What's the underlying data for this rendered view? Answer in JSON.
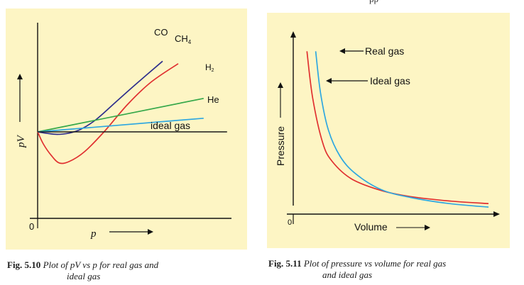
{
  "header_fragment": "pp",
  "chart_data": [
    {
      "type": "line",
      "figure_label": "Fig. 5.10",
      "caption": "Plot of pV vs p for real gas and ideal gas",
      "caption_line1": "Plot of  pV vs p for real gas and",
      "caption_line2": "ideal gas",
      "xlabel": "p",
      "ylabel": "pV",
      "origin_label": "0",
      "series": [
        {
          "name": "CO",
          "color": "#2e2e8c",
          "x": [
            0,
            0.4,
            1.0,
            1.6,
            2.2,
            3.0,
            4.0,
            5.0,
            6.4
          ],
          "y": [
            1.0,
            0.95,
            0.9,
            0.95,
            1.1,
            1.5,
            2.2,
            2.9,
            3.85
          ]
        },
        {
          "name": "CH4",
          "color": "#e03030",
          "x": [
            0,
            0.3,
            0.7,
            1.1,
            1.6,
            2.4,
            3.4,
            4.6,
            5.8,
            7.2
          ],
          "y": [
            1.0,
            0.5,
            0.05,
            -0.25,
            -0.2,
            0.2,
            1.0,
            2.1,
            3.0,
            3.75
          ]
        },
        {
          "name": "H2",
          "color": "#35a84a",
          "x": [
            0,
            8.5
          ],
          "y": [
            1.0,
            2.35
          ]
        },
        {
          "name": "He",
          "color": "#2ea7e0",
          "x": [
            0,
            8.5
          ],
          "y": [
            1.0,
            1.55
          ]
        },
        {
          "name": "ideal gas",
          "color": "#1a1a1a",
          "x": [
            0,
            9.7
          ],
          "y": [
            1.0,
            1.0
          ]
        }
      ],
      "series_labels": {
        "CO": "CO",
        "CH4_main": "CH",
        "CH4_sub": "4",
        "H2_main": "H",
        "H2_sub": "2",
        "He": "He",
        "ideal": "ideal gas"
      }
    },
    {
      "type": "line",
      "figure_label": "Fig. 5.11",
      "caption": "Plot of pressure vs volume for real gas and ideal gas",
      "caption_line1": "Plot of pressure vs volume for real gas",
      "caption_line2": "and ideal gas",
      "xlabel": "Volume",
      "ylabel": "Pressure",
      "origin_label": "0",
      "series": [
        {
          "name": "Ideal gas",
          "color": "#e03030",
          "x": [
            0.7,
            1.0,
            1.5,
            2.0,
            3.0,
            4.5,
            6.0,
            8.0,
            10.0
          ],
          "y": [
            9.3,
            6.6,
            4.1,
            3.0,
            2.0,
            1.35,
            1.0,
            0.75,
            0.6
          ]
        },
        {
          "name": "Real gas",
          "color": "#2ea7e0",
          "x": [
            1.15,
            1.4,
            1.8,
            2.4,
            3.2,
            4.5,
            6.0,
            8.0,
            10.0
          ],
          "y": [
            9.3,
            6.9,
            4.8,
            3.3,
            2.3,
            1.4,
            0.95,
            0.6,
            0.4
          ]
        }
      ],
      "annotations": {
        "real": "Real gas",
        "ideal": "Ideal gas"
      }
    }
  ]
}
